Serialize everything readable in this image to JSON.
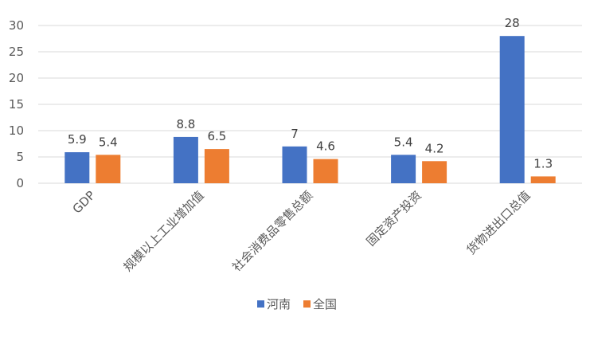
{
  "chart_data": {
    "type": "bar",
    "title": "",
    "xlabel": "",
    "ylabel": "",
    "categories": [
      "GDP",
      "规模以上工业增加值",
      "社会消费品零售总额",
      "固定资产投资",
      "货物进出口总值"
    ],
    "series": [
      {
        "name": "河南",
        "values": [
          5.9,
          8.8,
          7,
          5.4,
          28
        ],
        "labels": [
          "5.9",
          "8.8",
          "7",
          "5.4",
          "28"
        ],
        "color": "#4472C4"
      },
      {
        "name": "全国",
        "values": [
          5.4,
          6.5,
          4.6,
          4.2,
          1.3
        ],
        "labels": [
          "5.4",
          "6.5",
          "4.6",
          "4.2",
          "1.3"
        ],
        "color": "#ED7D31"
      }
    ],
    "ylim": [
      0,
      30
    ],
    "yticks": [
      0,
      5,
      10,
      15,
      20,
      25,
      30
    ],
    "grid": true,
    "legend_position": "bottom"
  }
}
